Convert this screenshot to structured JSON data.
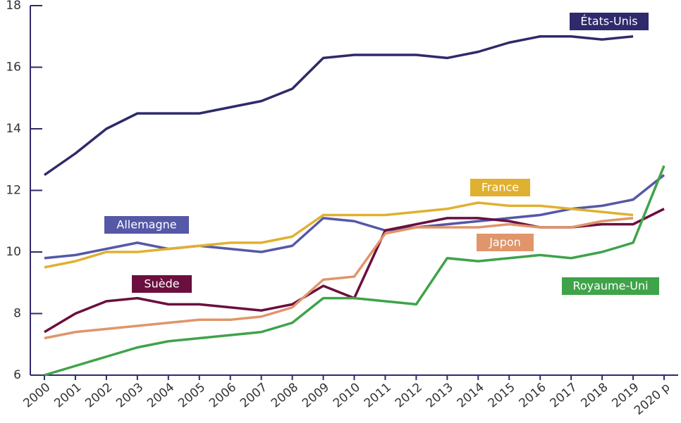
{
  "chart_data": {
    "type": "line",
    "categories": [
      "2000",
      "2001",
      "2002",
      "2003",
      "2004",
      "2005",
      "2006",
      "2007",
      "2008",
      "2009",
      "2010",
      "2011",
      "2012",
      "2013",
      "2014",
      "2015",
      "2016",
      "2017",
      "2018",
      "2019",
      "2020 p"
    ],
    "ylim": [
      6,
      18
    ],
    "yticks": [
      6,
      8,
      10,
      12,
      14,
      16,
      18
    ],
    "series": [
      {
        "name": "États-Unis",
        "color": "#2e2a6b",
        "values": [
          12.5,
          13.2,
          14.0,
          14.5,
          14.5,
          14.5,
          14.7,
          14.9,
          15.3,
          16.3,
          16.4,
          16.4,
          16.4,
          16.3,
          16.5,
          16.8,
          17.0,
          17.0,
          16.9,
          17.0,
          null
        ]
      },
      {
        "name": "Allemagne",
        "color": "#5558a6",
        "values": [
          9.8,
          9.9,
          10.1,
          10.3,
          10.1,
          10.2,
          10.1,
          10.0,
          10.2,
          11.1,
          11.0,
          10.7,
          10.8,
          10.9,
          11.0,
          11.1,
          11.2,
          11.4,
          11.5,
          11.7,
          12.5
        ]
      },
      {
        "name": "France",
        "color": "#e0b030",
        "values": [
          9.5,
          9.7,
          10.0,
          10.0,
          10.1,
          10.2,
          10.3,
          10.3,
          10.5,
          11.2,
          11.2,
          11.2,
          11.3,
          11.4,
          11.6,
          11.5,
          11.5,
          11.4,
          11.3,
          11.2,
          null
        ]
      },
      {
        "name": "Suède",
        "color": "#6b0f3e",
        "values": [
          7.4,
          8.0,
          8.4,
          8.5,
          8.3,
          8.3,
          8.2,
          8.1,
          8.3,
          8.9,
          8.5,
          10.7,
          10.9,
          11.1,
          11.1,
          11.0,
          10.8,
          10.8,
          10.9,
          10.9,
          11.4
        ]
      },
      {
        "name": "Japon",
        "color": "#e0956a",
        "values": [
          7.2,
          7.4,
          7.5,
          7.6,
          7.7,
          7.8,
          7.8,
          7.9,
          8.2,
          9.1,
          9.2,
          10.6,
          10.8,
          10.8,
          10.8,
          10.9,
          10.8,
          10.8,
          11.0,
          11.1,
          null
        ]
      },
      {
        "name": "Royaume-Uni",
        "color": "#3fa34a",
        "values": [
          6.0,
          6.3,
          6.6,
          6.9,
          7.1,
          7.2,
          7.3,
          7.4,
          7.7,
          8.5,
          8.5,
          8.4,
          8.3,
          9.8,
          9.7,
          9.8,
          9.9,
          9.8,
          10.0,
          10.3,
          12.8
        ]
      }
    ]
  }
}
